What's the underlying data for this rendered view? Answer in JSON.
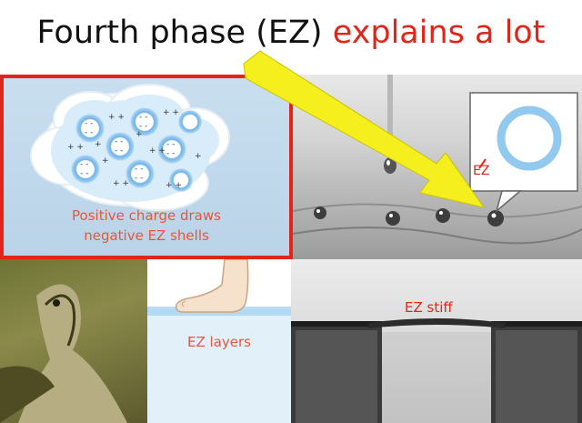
{
  "title": {
    "part1": "Fourth phase (EZ) ",
    "part2": "explains a lot"
  },
  "panels": {
    "cloud": {
      "caption_line1": "Positive charge draws",
      "caption_line2": "negative EZ shells"
    },
    "droplets": {
      "label": "EZ"
    },
    "foot": {
      "label": "EZ layers"
    },
    "stiff": {
      "label": "EZ stiff"
    }
  },
  "colors": {
    "title_accent": "#e0261b",
    "arrow": "#f5ef1e",
    "ez_blue": "#4aa3e0",
    "panel_border": "#e0261b"
  }
}
